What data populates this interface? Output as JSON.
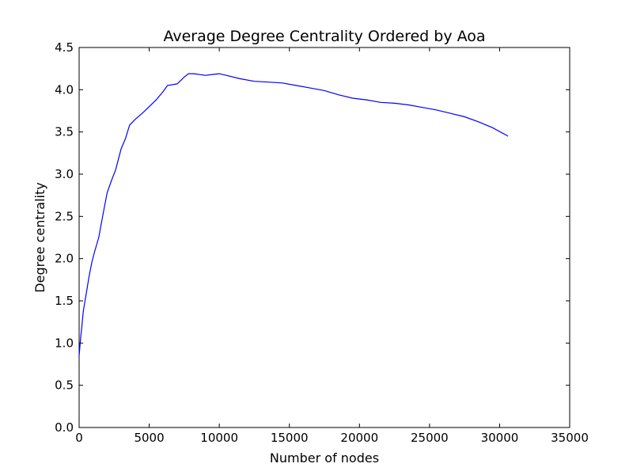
{
  "chart_data": {
    "type": "line",
    "title": "Average Degree Centrality Ordered by Aoa",
    "xlabel": "Number of nodes",
    "ylabel": "Degree centrality",
    "xlim": [
      0,
      35000
    ],
    "ylim": [
      0.0,
      4.5
    ],
    "xticks": [
      0,
      5000,
      10000,
      15000,
      20000,
      25000,
      30000,
      35000
    ],
    "xtick_labels": [
      "0",
      "5000",
      "10000",
      "15000",
      "20000",
      "25000",
      "30000",
      "35000"
    ],
    "yticks": [
      0.0,
      0.5,
      1.0,
      1.5,
      2.0,
      2.5,
      3.0,
      3.5,
      4.0,
      4.5
    ],
    "ytick_labels": [
      "0.0",
      "0.5",
      "1.0",
      "1.5",
      "2.0",
      "2.5",
      "3.0",
      "3.5",
      "4.0",
      "4.5"
    ],
    "grid": false,
    "line_color": "#0000ff",
    "series": [
      {
        "x": [
          0,
          100,
          200,
          300,
          500,
          700,
          900,
          1100,
          1400,
          1700,
          2000,
          2300,
          2600,
          3000,
          3300,
          3600,
          4000,
          4500,
          5000,
          5500,
          6000,
          6300,
          7000,
          7500,
          7800,
          8200,
          9000,
          9500,
          10000,
          10500,
          11500,
          12500,
          13500,
          14500,
          15500,
          16500,
          17500,
          18500,
          19500,
          20500,
          21500,
          22500,
          23500,
          24500,
          25500,
          26500,
          27500,
          28500,
          29500,
          30600
        ],
        "y": [
          0.85,
          1.05,
          1.2,
          1.38,
          1.58,
          1.78,
          1.95,
          2.08,
          2.25,
          2.52,
          2.78,
          2.92,
          3.05,
          3.3,
          3.42,
          3.58,
          3.65,
          3.72,
          3.8,
          3.88,
          3.98,
          4.05,
          4.07,
          4.15,
          4.19,
          4.19,
          4.17,
          4.18,
          4.19,
          4.17,
          4.13,
          4.1,
          4.09,
          4.08,
          4.05,
          4.02,
          3.99,
          3.94,
          3.9,
          3.88,
          3.85,
          3.84,
          3.82,
          3.79,
          3.76,
          3.72,
          3.68,
          3.62,
          3.55,
          3.45
        ]
      }
    ]
  }
}
